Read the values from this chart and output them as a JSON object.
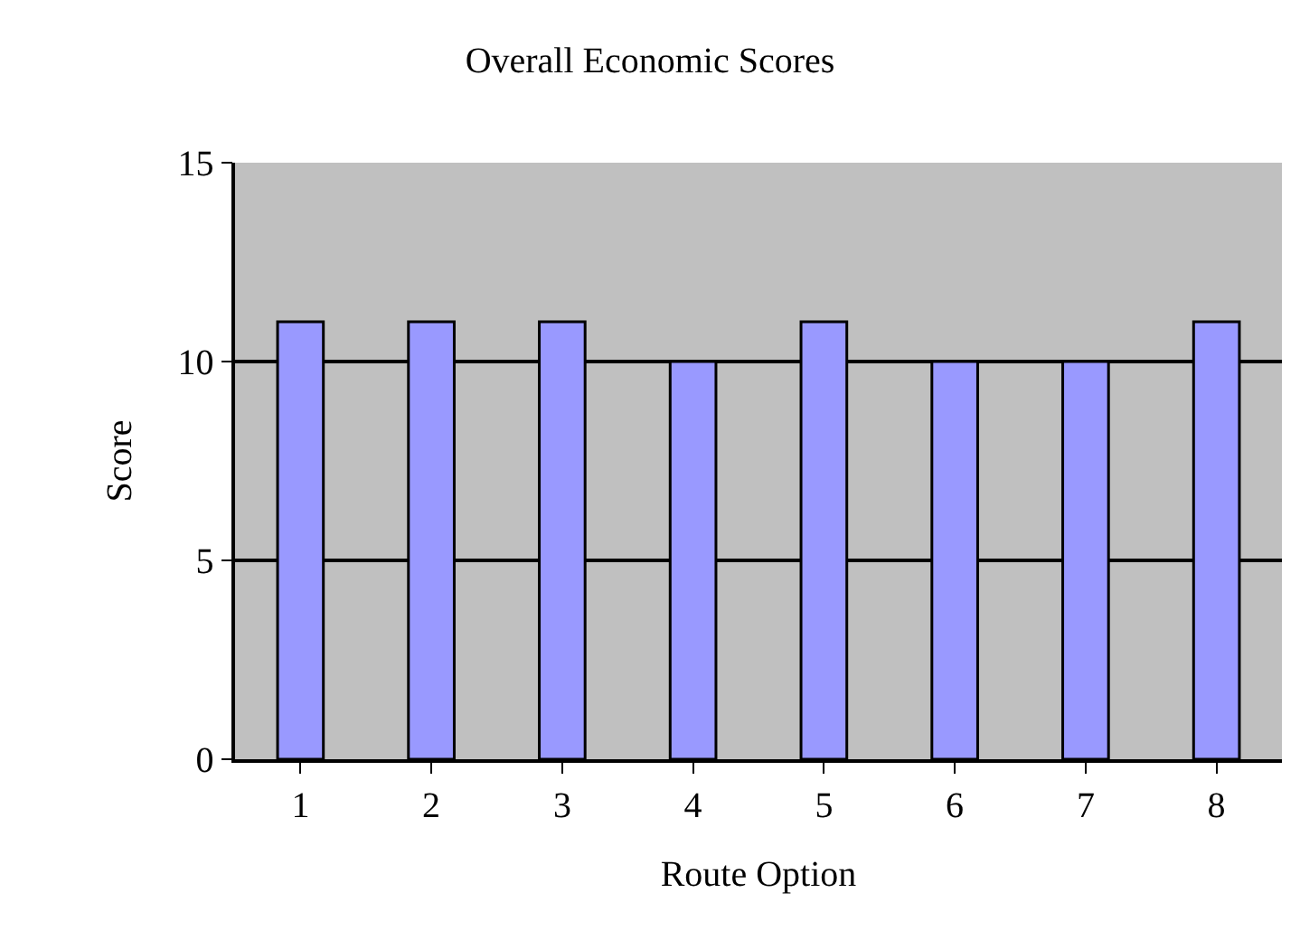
{
  "chart_data": {
    "type": "bar",
    "title": "Overall Economic Scores",
    "xlabel": "Route Option",
    "ylabel": "Score",
    "categories": [
      "1",
      "2",
      "3",
      "4",
      "5",
      "6",
      "7",
      "8"
    ],
    "values": [
      11,
      11,
      11,
      10,
      11,
      10,
      10,
      11
    ],
    "color": "#9999ff",
    "ylim": [
      0,
      15
    ],
    "yticks": [
      0,
      5,
      10,
      15
    ],
    "grid": "y"
  }
}
